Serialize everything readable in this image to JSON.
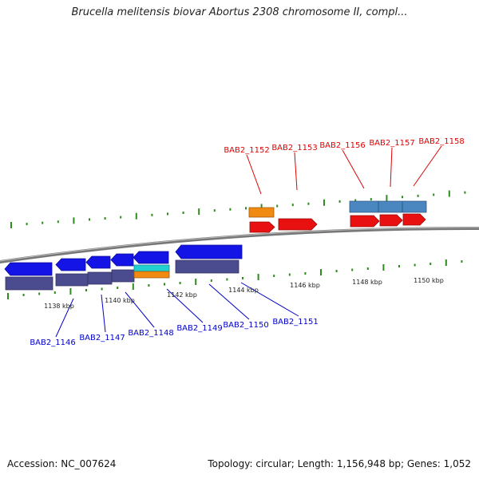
{
  "title": "Brucella melitensis biovar Abortus 2308 chromosome II, compl...",
  "accession": "Accession: NC_007624",
  "topology": "Topology: circular; Length: 1,156,948 bp; Genes: 1,052",
  "colors": {
    "axis": "#777777",
    "tick": "#2e8b1e",
    "gene_label_top": "#e00000",
    "gene_label_bottom": "#0000cc",
    "red_gene": "#e81010",
    "blue_gene": "#1414e6",
    "purple_gene": "#4b4b8f",
    "steel_gene": "#4a86c0",
    "orange_gene": "#f08a10",
    "cyan_gene": "#20d0d0"
  },
  "kbp_labels": [
    "1138 kbp",
    "1140 kbp",
    "1142 kbp",
    "1144 kbp",
    "1146 kbp",
    "1148 kbp",
    "1150 kbp"
  ],
  "genes_top": [
    "BAB2_1152",
    "BAB2_1153",
    "BAB2_1156",
    "BAB2_1157",
    "BAB2_1158"
  ],
  "genes_bottom": [
    "BAB2_1146",
    "BAB2_1147",
    "BAB2_1148",
    "BAB2_1149",
    "BAB2_1150",
    "BAB2_1151"
  ]
}
